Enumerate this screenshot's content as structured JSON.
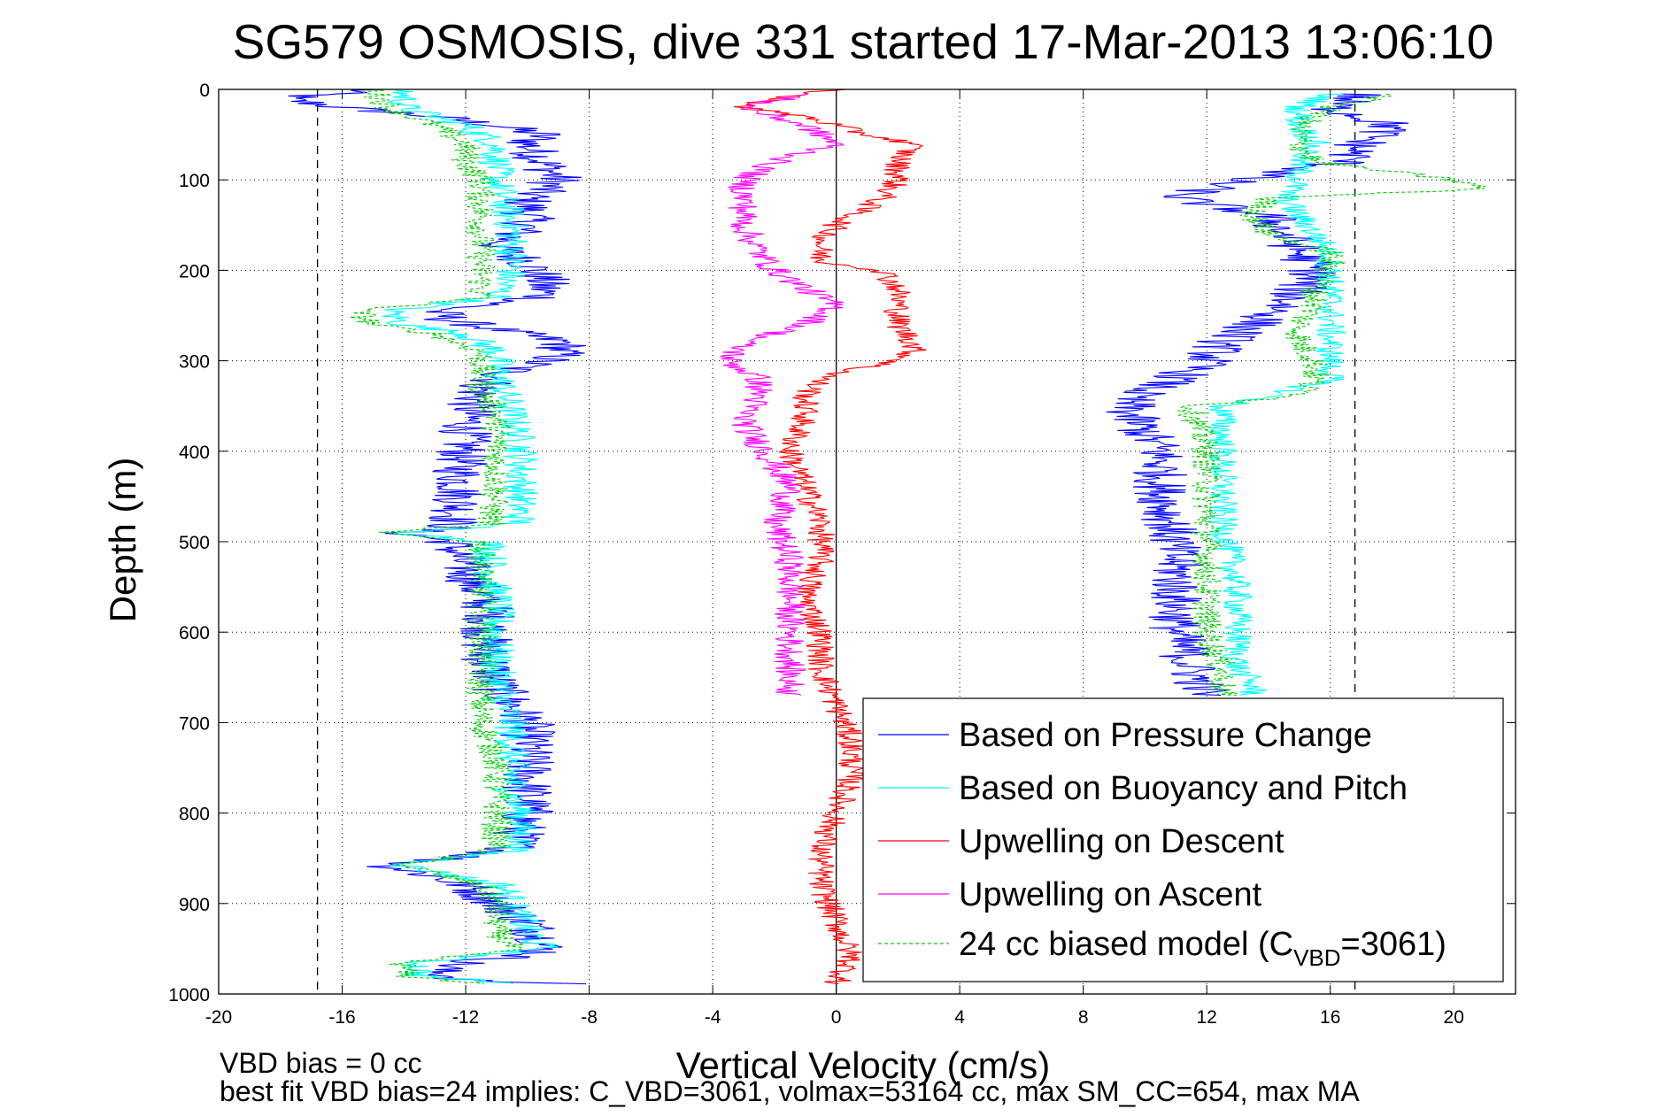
{
  "chart_data": {
    "type": "line",
    "title": "SG579 OSMOSIS, dive 331 started 17-Mar-2013 13:06:10",
    "xlabel": "Vertical Velocity (cm/s)",
    "ylabel": "Depth (m)",
    "xlim": [
      -20,
      22
    ],
    "ylim": [
      1000,
      0
    ],
    "y_reversed": true,
    "grid": true,
    "x_ticks": [
      -20,
      -16,
      -12,
      -8,
      -4,
      0,
      4,
      8,
      12,
      16,
      20
    ],
    "x_tick_labels": [
      "-20",
      "-16",
      "-12",
      "-8",
      "-4",
      "0",
      "4",
      "8",
      "12",
      "16",
      "20"
    ],
    "y_ticks": [
      0,
      100,
      200,
      300,
      400,
      500,
      600,
      700,
      800,
      900,
      1000
    ],
    "y_tick_labels": [
      "0",
      "100",
      "200",
      "300",
      "400",
      "500",
      "600",
      "700",
      "800",
      "900",
      "1000"
    ],
    "reference_lines": [
      {
        "x": -16.8,
        "style": "dashed",
        "color": "#000000"
      },
      {
        "x": 16.8,
        "style": "dashed",
        "color": "#000000"
      },
      {
        "x": 0,
        "style": "solid",
        "color": "#000000"
      }
    ],
    "legend_position": "bottom-right",
    "legend": [
      {
        "label": "Based on Pressure Change",
        "color": "#0000ff",
        "dash": false
      },
      {
        "label": "Based on Buoyancy and Pitch",
        "color": "#00ffff",
        "dash": false
      },
      {
        "label": "Upwelling on Descent",
        "color": "#ff0000",
        "dash": false
      },
      {
        "label": "Upwelling on Ascent",
        "color": "#ff00ff",
        "dash": false
      },
      {
        "label_main": "24 cc biased model (C",
        "label_sub": "VBD",
        "label_end": "=3061)",
        "color": "#00cc00",
        "dash": true
      }
    ],
    "series": [
      {
        "key": "pressure_descent",
        "color": "#0000ff",
        "dash": false,
        "noise": 0.9,
        "points": [
          [
            0,
            -15
          ],
          [
            10,
            -18
          ],
          [
            20,
            -16
          ],
          [
            30,
            -13
          ],
          [
            40,
            -11
          ],
          [
            50,
            -9.5
          ],
          [
            60,
            -10
          ],
          [
            80,
            -9.5
          ],
          [
            100,
            -9
          ],
          [
            120,
            -10
          ],
          [
            150,
            -10
          ],
          [
            175,
            -11
          ],
          [
            190,
            -10
          ],
          [
            210,
            -9.5
          ],
          [
            230,
            -9.5
          ],
          [
            245,
            -13
          ],
          [
            255,
            -12.5
          ],
          [
            265,
            -11
          ],
          [
            280,
            -8.8
          ],
          [
            295,
            -9
          ],
          [
            310,
            -10.5
          ],
          [
            330,
            -11.5
          ],
          [
            350,
            -11.8
          ],
          [
            380,
            -12
          ],
          [
            420,
            -12.2
          ],
          [
            460,
            -12.2
          ],
          [
            485,
            -12.5
          ],
          [
            490,
            -14
          ],
          [
            500,
            -12.5
          ],
          [
            530,
            -12
          ],
          [
            580,
            -11.2
          ],
          [
            620,
            -11.4
          ],
          [
            660,
            -11
          ],
          [
            700,
            -10
          ],
          [
            740,
            -10
          ],
          [
            780,
            -10
          ],
          [
            800,
            -10
          ],
          [
            840,
            -10.5
          ],
          [
            848,
            -12
          ],
          [
            858,
            -14.5
          ],
          [
            870,
            -13
          ],
          [
            880,
            -12
          ],
          [
            900,
            -11
          ],
          [
            920,
            -10
          ],
          [
            940,
            -9.5
          ],
          [
            955,
            -9.5
          ],
          [
            965,
            -12
          ],
          [
            975,
            -13
          ],
          [
            985,
            -12
          ],
          [
            990,
            -8
          ]
        ]
      },
      {
        "key": "buoyancy_descent",
        "color": "#00ffff",
        "dash": false,
        "noise": 0.6,
        "points": [
          [
            0,
            -14
          ],
          [
            20,
            -14
          ],
          [
            40,
            -12
          ],
          [
            60,
            -11
          ],
          [
            100,
            -11
          ],
          [
            150,
            -10.5
          ],
          [
            200,
            -10.5
          ],
          [
            230,
            -11
          ],
          [
            245,
            -14.5
          ],
          [
            260,
            -14
          ],
          [
            270,
            -12
          ],
          [
            290,
            -11
          ],
          [
            310,
            -11
          ],
          [
            330,
            -10.8
          ],
          [
            360,
            -10.5
          ],
          [
            400,
            -10.2
          ],
          [
            440,
            -10.2
          ],
          [
            480,
            -10.3
          ],
          [
            490,
            -14
          ],
          [
            500,
            -11.2
          ],
          [
            530,
            -11.2
          ],
          [
            560,
            -11
          ],
          [
            600,
            -11
          ],
          [
            640,
            -11
          ],
          [
            680,
            -10.8
          ],
          [
            700,
            -10.5
          ],
          [
            740,
            -10.5
          ],
          [
            780,
            -10.5
          ],
          [
            800,
            -10.2
          ],
          [
            840,
            -10.3
          ],
          [
            848,
            -12
          ],
          [
            858,
            -14
          ],
          [
            880,
            -10.8
          ],
          [
            900,
            -10.5
          ],
          [
            930,
            -10
          ],
          [
            950,
            -9.5
          ],
          [
            965,
            -13.5
          ],
          [
            980,
            -13.5
          ],
          [
            990,
            -10
          ]
        ]
      },
      {
        "key": "model_descent",
        "color": "#00cc00",
        "dash": true,
        "noise": 0.5,
        "points": [
          [
            0,
            -15
          ],
          [
            20,
            -14.5
          ],
          [
            40,
            -13
          ],
          [
            60,
            -12
          ],
          [
            80,
            -12
          ],
          [
            100,
            -11.5
          ],
          [
            150,
            -11.5
          ],
          [
            200,
            -11.5
          ],
          [
            230,
            -11.5
          ],
          [
            245,
            -15.5
          ],
          [
            260,
            -15
          ],
          [
            270,
            -13
          ],
          [
            290,
            -11.5
          ],
          [
            330,
            -11.5
          ],
          [
            360,
            -11
          ],
          [
            400,
            -11
          ],
          [
            440,
            -11
          ],
          [
            480,
            -11.2
          ],
          [
            490,
            -15
          ],
          [
            500,
            -11.5
          ],
          [
            560,
            -11.5
          ],
          [
            620,
            -11.5
          ],
          [
            660,
            -11.5
          ],
          [
            700,
            -11.5
          ],
          [
            740,
            -11
          ],
          [
            780,
            -11
          ],
          [
            800,
            -11
          ],
          [
            840,
            -11
          ],
          [
            848,
            -12.5
          ],
          [
            858,
            -14
          ],
          [
            880,
            -11.5
          ],
          [
            900,
            -11
          ],
          [
            930,
            -11
          ],
          [
            950,
            -10.5
          ],
          [
            965,
            -14
          ],
          [
            980,
            -14
          ],
          [
            990,
            -11
          ]
        ]
      },
      {
        "key": "pressure_ascent",
        "color": "#0000ff",
        "dash": false,
        "noise": 0.9,
        "points": [
          [
            5,
            17
          ],
          [
            20,
            16
          ],
          [
            40,
            18
          ],
          [
            60,
            17
          ],
          [
            80,
            16.5
          ],
          [
            100,
            13
          ],
          [
            120,
            11
          ],
          [
            140,
            14
          ],
          [
            160,
            14.5
          ],
          [
            180,
            15
          ],
          [
            200,
            15.5
          ],
          [
            220,
            15
          ],
          [
            240,
            14.5
          ],
          [
            260,
            13.5
          ],
          [
            280,
            12.5
          ],
          [
            300,
            12
          ],
          [
            320,
            11
          ],
          [
            340,
            9.5
          ],
          [
            360,
            9.5
          ],
          [
            400,
            10.5
          ],
          [
            440,
            10.5
          ],
          [
            480,
            10.8
          ],
          [
            520,
            11
          ],
          [
            560,
            11
          ],
          [
            600,
            11
          ],
          [
            640,
            11.5
          ],
          [
            670,
            12
          ]
        ]
      },
      {
        "key": "buoyancy_ascent",
        "color": "#00ffff",
        "dash": false,
        "noise": 0.5,
        "points": [
          [
            5,
            16
          ],
          [
            20,
            15
          ],
          [
            40,
            15
          ],
          [
            60,
            15.5
          ],
          [
            80,
            15
          ],
          [
            100,
            15
          ],
          [
            120,
            14.5
          ],
          [
            140,
            15
          ],
          [
            160,
            15.5
          ],
          [
            180,
            16
          ],
          [
            200,
            16
          ],
          [
            220,
            16
          ],
          [
            240,
            16
          ],
          [
            260,
            16
          ],
          [
            280,
            16
          ],
          [
            300,
            16
          ],
          [
            320,
            16
          ],
          [
            340,
            14
          ],
          [
            350,
            12.5
          ],
          [
            400,
            12.5
          ],
          [
            440,
            12.5
          ],
          [
            480,
            12.5
          ],
          [
            520,
            12.8
          ],
          [
            560,
            13
          ],
          [
            600,
            13
          ],
          [
            640,
            13
          ],
          [
            660,
            13.5
          ],
          [
            670,
            13.5
          ]
        ]
      },
      {
        "key": "model_ascent",
        "color": "#00cc00",
        "dash": true,
        "noise": 0.5,
        "points": [
          [
            5,
            18
          ],
          [
            20,
            16
          ],
          [
            40,
            15
          ],
          [
            60,
            15
          ],
          [
            80,
            15.5
          ],
          [
            100,
            20
          ],
          [
            110,
            21
          ],
          [
            120,
            14
          ],
          [
            140,
            13.5
          ],
          [
            160,
            14
          ],
          [
            180,
            16
          ],
          [
            200,
            16
          ],
          [
            220,
            15.5
          ],
          [
            240,
            15.5
          ],
          [
            260,
            15
          ],
          [
            280,
            15
          ],
          [
            300,
            15.5
          ],
          [
            320,
            15.5
          ],
          [
            340,
            15
          ],
          [
            350,
            11.5
          ],
          [
            400,
            12
          ],
          [
            440,
            12
          ],
          [
            480,
            12
          ],
          [
            520,
            12
          ],
          [
            560,
            12
          ],
          [
            600,
            12
          ],
          [
            640,
            12.5
          ],
          [
            660,
            12.5
          ],
          [
            670,
            12.5
          ]
        ]
      },
      {
        "key": "upwelling_descent",
        "color": "#ff0000",
        "dash": false,
        "noise": 0.45,
        "points": [
          [
            0,
            0
          ],
          [
            10,
            -2
          ],
          [
            20,
            -3
          ],
          [
            30,
            -1
          ],
          [
            40,
            0
          ],
          [
            50,
            1
          ],
          [
            60,
            2.5
          ],
          [
            80,
            2
          ],
          [
            100,
            2
          ],
          [
            120,
            1.5
          ],
          [
            150,
            0
          ],
          [
            170,
            -0.5
          ],
          [
            190,
            -0.5
          ],
          [
            200,
            1.5
          ],
          [
            220,
            2
          ],
          [
            240,
            2
          ],
          [
            260,
            2
          ],
          [
            280,
            2.5
          ],
          [
            290,
            2.5
          ],
          [
            300,
            2
          ],
          [
            310,
            0.5
          ],
          [
            320,
            -0.5
          ],
          [
            340,
            -1
          ],
          [
            360,
            -1
          ],
          [
            400,
            -1.5
          ],
          [
            440,
            -1
          ],
          [
            480,
            -0.5
          ],
          [
            520,
            -0.5
          ],
          [
            560,
            -1
          ],
          [
            600,
            -0.5
          ],
          [
            640,
            -0.5
          ],
          [
            680,
            0
          ],
          [
            720,
            0.5
          ],
          [
            760,
            0.5
          ],
          [
            800,
            0
          ],
          [
            840,
            -0.5
          ],
          [
            880,
            -0.5
          ],
          [
            920,
            0
          ],
          [
            960,
            0.5
          ],
          [
            990,
            0
          ]
        ]
      },
      {
        "key": "upwelling_ascent",
        "color": "#ff00ff",
        "dash": false,
        "noise": 0.5,
        "points": [
          [
            5,
            -1
          ],
          [
            20,
            -3
          ],
          [
            40,
            -1
          ],
          [
            60,
            0
          ],
          [
            80,
            -2
          ],
          [
            100,
            -3
          ],
          [
            120,
            -3
          ],
          [
            150,
            -3
          ],
          [
            180,
            -2.5
          ],
          [
            200,
            -2
          ],
          [
            220,
            -1
          ],
          [
            240,
            0
          ],
          [
            260,
            -1
          ],
          [
            280,
            -3
          ],
          [
            300,
            -3.5
          ],
          [
            320,
            -2.5
          ],
          [
            340,
            -2.5
          ],
          [
            360,
            -3
          ],
          [
            380,
            -2.8
          ],
          [
            400,
            -2.3
          ],
          [
            440,
            -1.5
          ],
          [
            480,
            -2
          ],
          [
            520,
            -1.5
          ],
          [
            560,
            -1.5
          ],
          [
            600,
            -1.5
          ],
          [
            640,
            -1.5
          ],
          [
            670,
            -1.5
          ]
        ]
      }
    ]
  },
  "footer": {
    "line1": "VBD bias = 0 cc",
    "line2": "best fit VBD bias=24 implies: C_VBD=3061, volmax=53164 cc, max SM_CC=654, max MA"
  }
}
